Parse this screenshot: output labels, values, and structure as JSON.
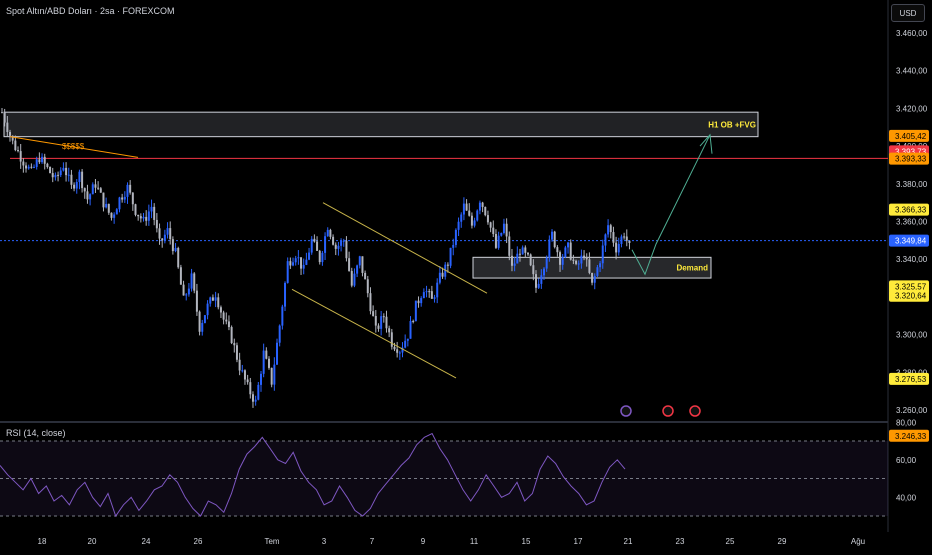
{
  "header": {
    "symbol": "Spot Altın/ABD Doları · 2sa · FOREXCOM",
    "currency": "USD"
  },
  "colors": {
    "up": "#2962ff",
    "down": "#b2b5be",
    "rsi": "#7e57c2",
    "resistance_line": "#f23645",
    "orange_line": "#ff9800",
    "channel": "#c8b44a",
    "projection": "#4fae93",
    "background": "#000000",
    "current_price_line": "#2962ff"
  },
  "chart_data": [
    {
      "type": "candlestick",
      "title": "Spot Altın/ABD Doları · 2sa · FOREXCOM",
      "x_ticks": [
        "18",
        "20",
        "24",
        "26",
        "Tem",
        "3",
        "7",
        "9",
        "11",
        "15",
        "17",
        "21",
        "23",
        "25",
        "29",
        "Ağu"
      ],
      "y_ticks": [
        "3.460,00",
        "3.440,00",
        "3.420,00",
        "3.400,00",
        "3.380,00",
        "3.360,00",
        "3.340,00",
        "3.320,00",
        "3.300,00",
        "3.280,00",
        "3.260,00"
      ],
      "y_tick_values": [
        3460,
        3440,
        3420,
        3400,
        3380,
        3360,
        3340,
        3320,
        3300,
        3280,
        3260
      ],
      "ylim": [
        3245,
        3474
      ],
      "price_labels": [
        {
          "text": "3.405,42",
          "value": 3405.42,
          "bg": "#ff9800",
          "fg": "#000000"
        },
        {
          "text": "3.393,73",
          "value": 3397.2,
          "bg": "#f23645",
          "fg": "#ffffff"
        },
        {
          "text": "3.393,33",
          "value": 3393.33,
          "bg": "#ff9800",
          "fg": "#000000"
        },
        {
          "text": "3.366,33",
          "value": 3366.33,
          "bg": "#ffeb3b",
          "fg": "#000000"
        },
        {
          "text": "3.349,84",
          "value": 3349.84,
          "bg": "#2962ff",
          "fg": "#ffffff"
        },
        {
          "text": "3.325,57",
          "value": 3325.57,
          "bg": "#ffeb3b",
          "fg": "#000000"
        },
        {
          "text": "3.320,64",
          "value": 3320.64,
          "bg": "#ffeb3b",
          "fg": "#000000"
        },
        {
          "text": "3.276,53",
          "value": 3276.53,
          "bg": "#ffeb3b",
          "fg": "#000000"
        },
        {
          "text": "3.246,33",
          "value": 3246.33,
          "bg": "#ff9800",
          "fg": "#000000"
        }
      ],
      "annotations": {
        "ob_zone": {
          "label": "H1 OB +FVG",
          "price_top": 3418,
          "price_bottom": 3405
        },
        "demand_zone": {
          "label": "Demand",
          "price_top": 3341,
          "price_bottom": 3330
        },
        "liquidity_label": "$$$$$",
        "resistance_price": 3393.5
      },
      "close_path": [
        [
          0,
          3418
        ],
        [
          4,
          3402
        ],
        [
          8,
          3392
        ],
        [
          11,
          3386
        ],
        [
          14,
          3394
        ],
        [
          17,
          3388
        ],
        [
          20,
          3382
        ],
        [
          23,
          3390
        ],
        [
          26,
          3378
        ],
        [
          29,
          3385
        ],
        [
          32,
          3372
        ],
        [
          35,
          3380
        ],
        [
          38,
          3370
        ],
        [
          41,
          3362
        ],
        [
          44,
          3372
        ],
        [
          47,
          3378
        ],
        [
          50,
          3366
        ],
        [
          53,
          3360
        ],
        [
          56,
          3368
        ],
        [
          59,
          3348
        ],
        [
          62,
          3355
        ],
        [
          65,
          3343
        ],
        [
          68,
          3318
        ],
        [
          71,
          3330
        ],
        [
          74,
          3304
        ],
        [
          77,
          3315
        ],
        [
          80,
          3322
        ],
        [
          83,
          3308
        ],
        [
          86,
          3298
        ],
        [
          89,
          3283
        ],
        [
          92,
          3272
        ],
        [
          95,
          3264
        ],
        [
          98,
          3290
        ],
        [
          101,
          3275
        ],
        [
          104,
          3305
        ],
        [
          107,
          3338
        ],
        [
          110,
          3343
        ],
        [
          113,
          3334
        ],
        [
          116,
          3350
        ],
        [
          119,
          3340
        ],
        [
          122,
          3358
        ],
        [
          125,
          3346
        ],
        [
          128,
          3350
        ],
        [
          131,
          3326
        ],
        [
          134,
          3340
        ],
        [
          137,
          3322
        ],
        [
          140,
          3302
        ],
        [
          143,
          3310
        ],
        [
          146,
          3296
        ],
        [
          149,
          3292
        ],
        [
          152,
          3300
        ],
        [
          155,
          3315
        ],
        [
          158,
          3325
        ],
        [
          161,
          3318
        ],
        [
          164,
          3330
        ],
        [
          167,
          3338
        ],
        [
          170,
          3354
        ],
        [
          173,
          3368
        ],
        [
          176,
          3358
        ],
        [
          179,
          3372
        ],
        [
          182,
          3362
        ],
        [
          185,
          3346
        ],
        [
          188,
          3358
        ],
        [
          191,
          3335
        ],
        [
          194,
          3345
        ],
        [
          197,
          3340
        ],
        [
          200,
          3325
        ],
        [
          203,
          3338
        ],
        [
          206,
          3353
        ],
        [
          209,
          3340
        ],
        [
          212,
          3346
        ],
        [
          215,
          3335
        ],
        [
          218,
          3343
        ],
        [
          221,
          3326
        ],
        [
          224,
          3340
        ],
        [
          227,
          3358
        ],
        [
          230,
          3346
        ],
        [
          233,
          3354
        ],
        [
          236,
          3342
        ]
      ]
    },
    {
      "type": "line",
      "title": "RSI (14, close)",
      "y_ticks": [
        "80,00",
        "60,00",
        "40,00"
      ],
      "y_tick_values": [
        80,
        60,
        40
      ],
      "bands": [
        70,
        50,
        30
      ],
      "ylim": [
        27,
        80
      ],
      "values": [
        57,
        52,
        48,
        44,
        50,
        42,
        46,
        38,
        41,
        36,
        44,
        48,
        40,
        35,
        42,
        30,
        36,
        40,
        33,
        38,
        44,
        46,
        52,
        48,
        40,
        34,
        30,
        38,
        36,
        32,
        42,
        55,
        63,
        67,
        72,
        66,
        60,
        58,
        64,
        54,
        48,
        44,
        36,
        38,
        46,
        40,
        33,
        30,
        34,
        42,
        47,
        52,
        57,
        61,
        68,
        72,
        74,
        66,
        60,
        52,
        44,
        38,
        44,
        52,
        46,
        40,
        42,
        48,
        38,
        42,
        55,
        62,
        58,
        51,
        46,
        42,
        36,
        38,
        48,
        56,
        60,
        55
      ]
    }
  ]
}
